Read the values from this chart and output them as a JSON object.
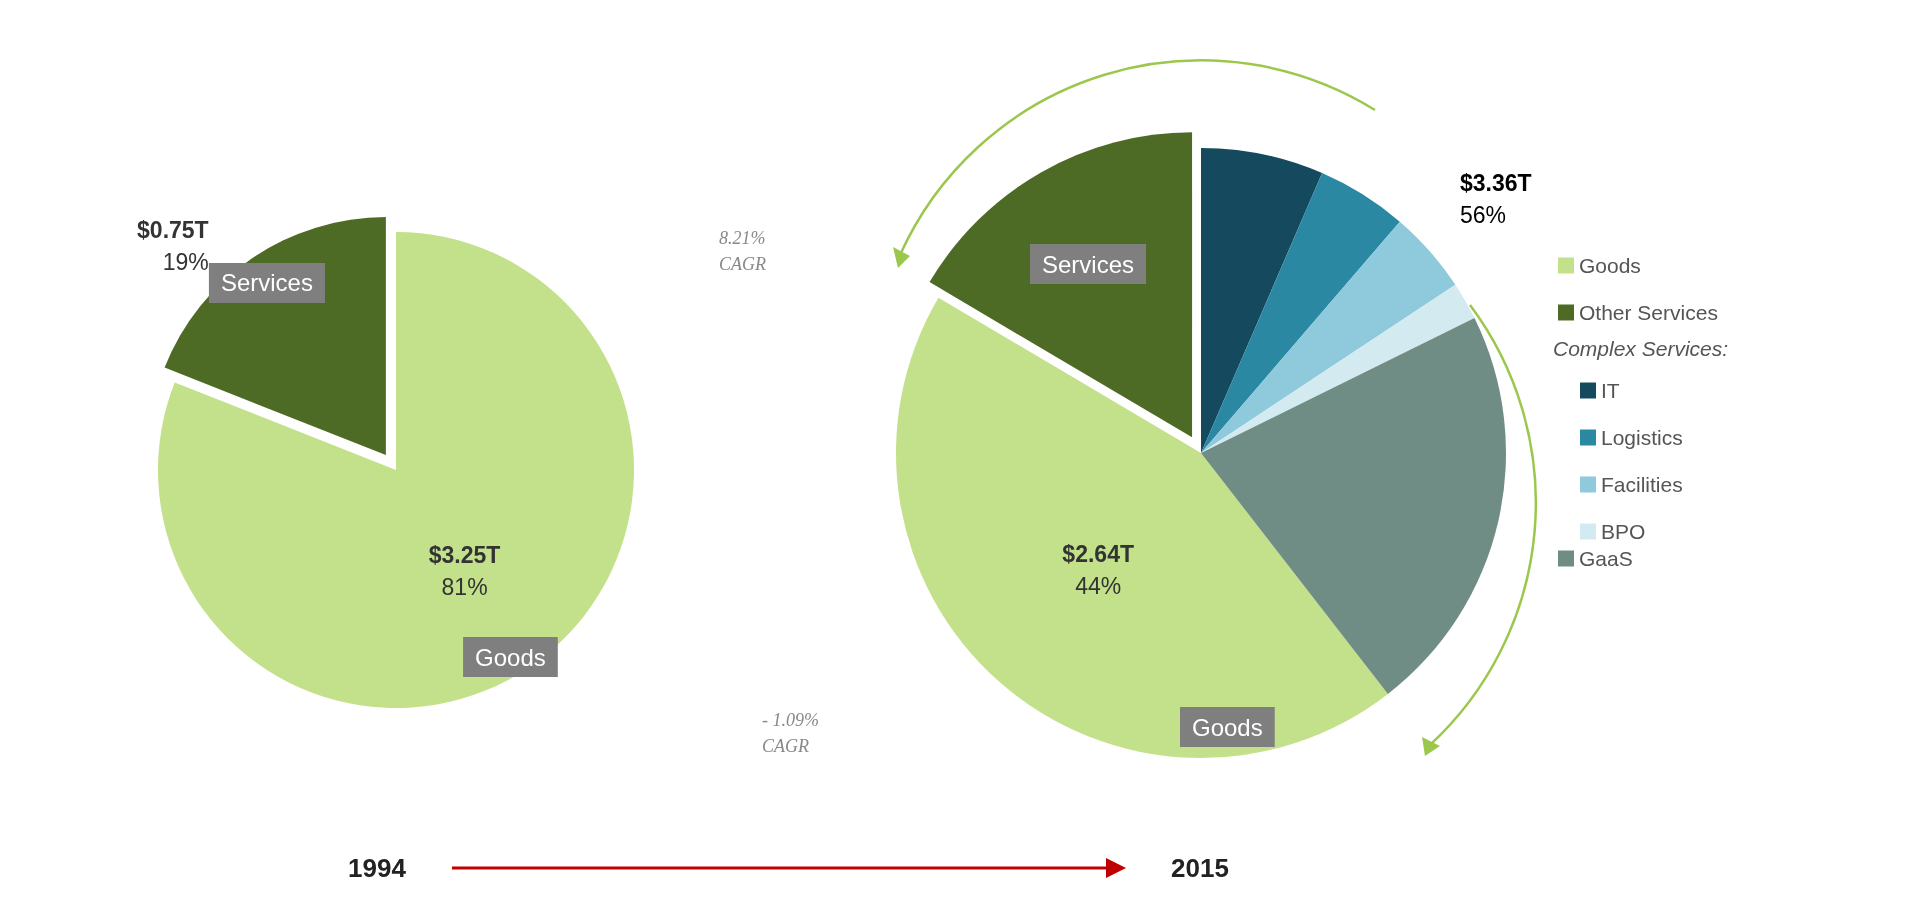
{
  "chart_data": [
    {
      "type": "pie",
      "xlabel": "1994",
      "categories": [
        "Goods",
        "Services"
      ],
      "values": [
        81,
        19
      ],
      "colors": [
        "#c3e08a",
        "#4e6b25"
      ],
      "value_labels": [
        "$3.25T\n81%",
        "$0.75T\n19%"
      ]
    },
    {
      "type": "pie",
      "xlabel": "2015",
      "categories": [
        "Goods",
        "Other Services",
        "IT",
        "Logistics",
        "Facilities",
        "BPO",
        "GaaS"
      ],
      "values": [
        44,
        16.5,
        6.5,
        4.8,
        4.4,
        2,
        21.8
      ],
      "colors": [
        "#c3e08a",
        "#4e6b25",
        "#154a5e",
        "#2a88a3",
        "#8ec9dc",
        "#d3eaf0",
        "#6f8d84"
      ],
      "value_labels": [
        "$2.64T\n44%",
        null,
        null,
        null,
        null,
        null,
        null
      ],
      "legend": "right",
      "legend_title": "Complex Services:",
      "annotations": [
        "8.21%\nCAGR",
        "- 1.09%\nCAGR",
        "$3.36T\n56%",
        "Services",
        "Goods"
      ]
    }
  ]
}
